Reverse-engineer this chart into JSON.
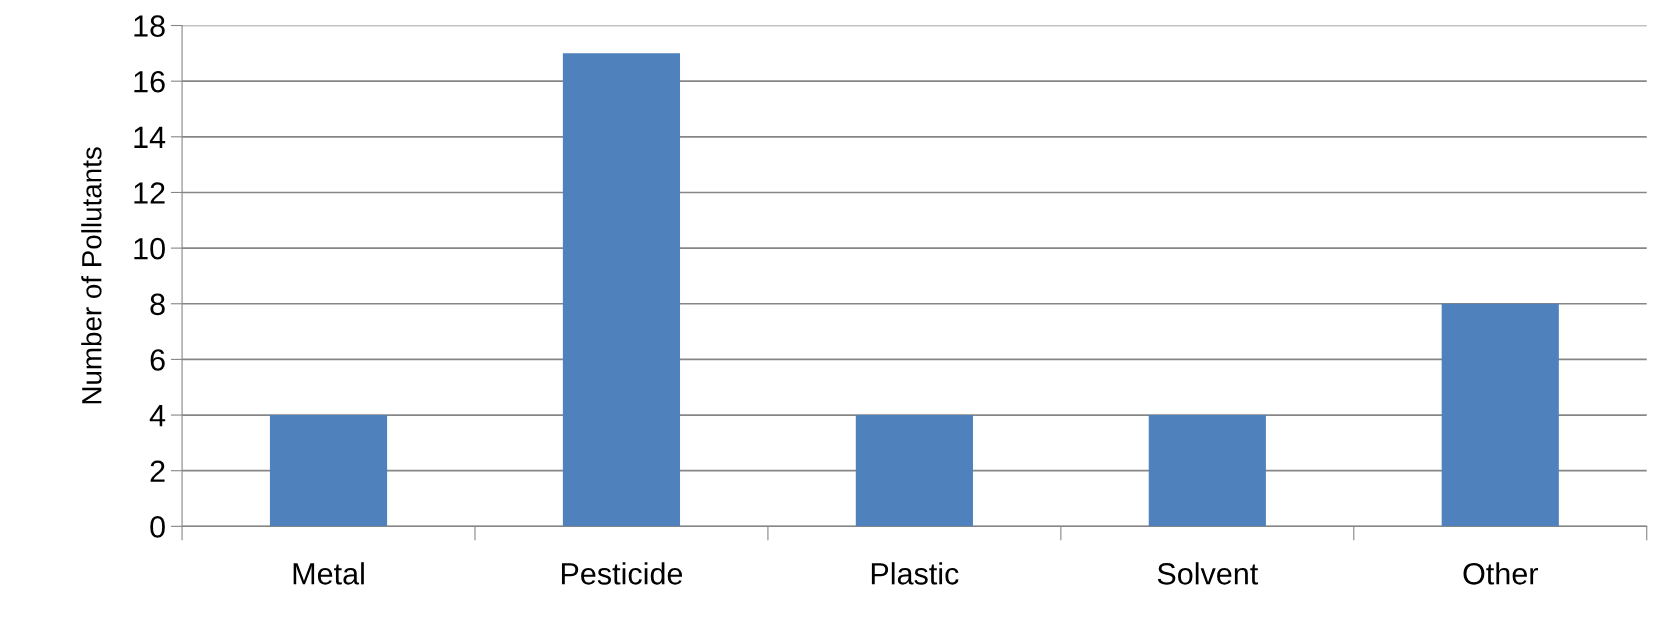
{
  "chart_data": {
    "type": "bar",
    "ylabel": "Number of Pollutants",
    "categories": [
      "Metal",
      "Pesticide",
      "Plastic",
      "Solvent",
      "Other"
    ],
    "values": [
      4,
      17,
      4,
      4,
      8
    ],
    "color": "#4f81bd",
    "ylim": [
      0,
      18
    ],
    "yticks": [
      0,
      2,
      4,
      6,
      8,
      10,
      12,
      14,
      16,
      18
    ],
    "grid": "y",
    "legend": false
  }
}
